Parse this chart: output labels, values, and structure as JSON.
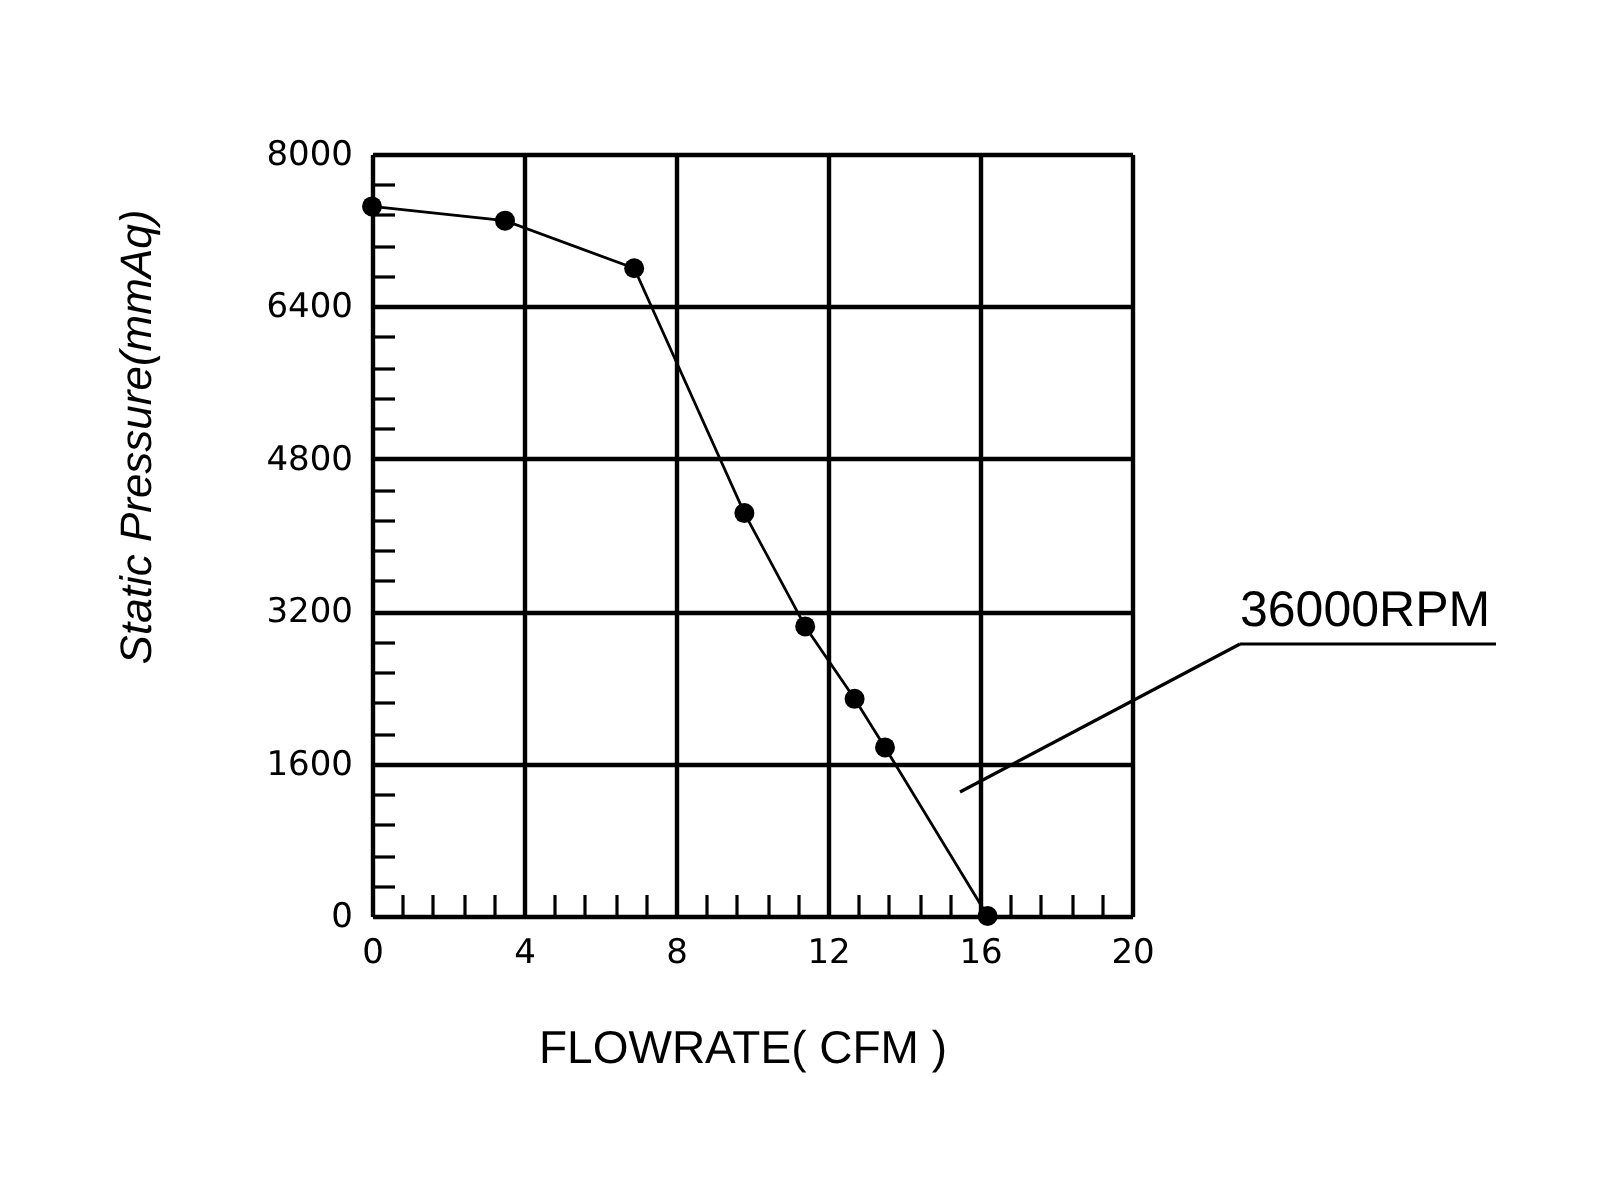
{
  "chart_data": {
    "type": "line",
    "xlabel": "FLOWRATE( CFM )",
    "ylabel": "Static Pressure(mmAq)",
    "x": [
      0,
      3.5,
      6.9,
      9.8,
      11.4,
      12.7,
      13.5,
      16.2
    ],
    "series": [
      {
        "color": "#000000",
        "values": [
          7450,
          7300,
          6800,
          4230,
          3040,
          2280,
          1770,
          0
        ]
      }
    ],
    "xlim": [
      0,
      20
    ],
    "ylim": [
      0,
      8000
    ],
    "xticks": [
      0,
      {
        "value": 0.8,
        "label": null
      },
      {
        "value": 1.6,
        "label": null
      },
      {
        "value": 2.4,
        "label": null
      },
      {
        "value": 3.2,
        "label": null
      },
      4,
      {
        "value": 4.8,
        "label": null
      },
      {
        "value": 5.6,
        "label": null
      },
      {
        "value": 6.4,
        "label": null
      },
      {
        "value": 7.2,
        "label": null
      },
      8,
      {
        "value": 8.8,
        "label": null
      },
      {
        "value": 9.6,
        "label": null
      },
      {
        "value": 10.4,
        "label": null
      },
      {
        "value": 11.2,
        "label": null
      },
      12,
      {
        "value": 12.8,
        "label": null
      },
      {
        "value": 13.6,
        "label": null
      },
      {
        "value": 14.4,
        "label": null
      },
      {
        "value": 15.2,
        "label": null
      },
      16,
      {
        "value": 16.8,
        "label": null
      },
      {
        "value": 17.6,
        "label": null
      },
      {
        "value": 18.4,
        "label": null
      },
      {
        "value": 19.2,
        "label": null
      },
      20
    ],
    "yticks": [
      0,
      {
        "value": 320,
        "label": null
      },
      {
        "value": 640,
        "label": null
      },
      {
        "value": 960,
        "label": null
      },
      {
        "value": 1280,
        "label": null
      },
      1600,
      {
        "value": 1920,
        "label": null
      },
      {
        "value": 2240,
        "label": null
      },
      {
        "value": 2560,
        "label": null
      },
      {
        "value": 2880,
        "label": null
      },
      3200,
      {
        "value": 3520,
        "label": null
      },
      {
        "value": 3840,
        "label": null
      },
      {
        "value": 4160,
        "label": null
      },
      {
        "value": 4480,
        "label": null
      },
      4800,
      {
        "value": 5120,
        "label": null
      },
      {
        "value": 5440,
        "label": null
      },
      {
        "value": 5760,
        "label": null
      },
      {
        "value": 6080,
        "label": null
      },
      6400,
      {
        "value": 6720,
        "label": null
      },
      {
        "value": 7040,
        "label": null
      },
      {
        "value": 7360,
        "label": null
      },
      {
        "value": 7680,
        "label": null
      },
      8000
    ],
    "grid": true,
    "marker": "circle",
    "line_style": "solid",
    "annotations": [
      "36000RPM"
    ]
  }
}
